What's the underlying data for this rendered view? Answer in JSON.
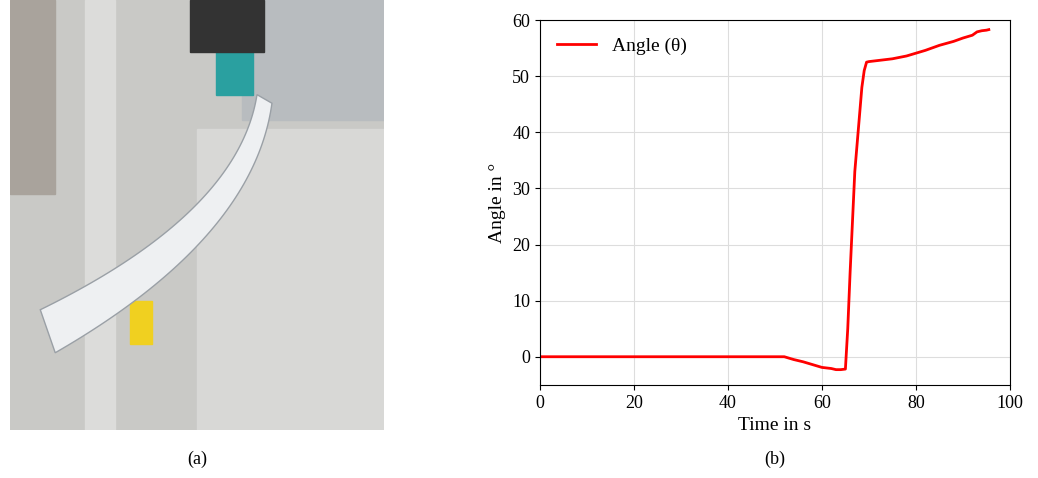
{
  "chart_data": {
    "type": "line",
    "x_label": "Time in s",
    "y_label": "Angle in °",
    "series": [
      {
        "name": "Angle (θ)",
        "color": "#ff0000",
        "x": [
          0,
          10,
          20,
          30,
          40,
          50,
          52,
          54,
          56,
          58,
          60,
          62,
          63,
          64,
          65,
          65.5,
          66,
          66.5,
          67,
          67.5,
          68,
          68.5,
          69,
          69.5,
          70,
          72,
          75,
          78,
          80,
          82,
          85,
          88,
          90,
          92,
          93,
          94,
          95,
          95.5
        ],
        "values": [
          0,
          0,
          0,
          0,
          0,
          0,
          0,
          -0.5,
          -0.9,
          -1.4,
          -1.9,
          -2.1,
          -2.3,
          -2.3,
          -2.2,
          5,
          15,
          24,
          33,
          38,
          43,
          48,
          51,
          52.5,
          52.6,
          52.8,
          53.1,
          53.6,
          54.1,
          54.6,
          55.5,
          56.2,
          56.8,
          57.3,
          57.9,
          58.1,
          58.2,
          58.3
        ]
      }
    ],
    "xlim": [
      0,
      100
    ],
    "xticks": [
      0,
      20,
      40,
      60,
      80,
      100
    ],
    "ylim": [
      -5,
      60
    ],
    "yticks": [
      0,
      10,
      20,
      30,
      40,
      50,
      60
    ],
    "grid": true,
    "legend": "upper left"
  },
  "captions": [
    "(a)",
    "(b)"
  ]
}
